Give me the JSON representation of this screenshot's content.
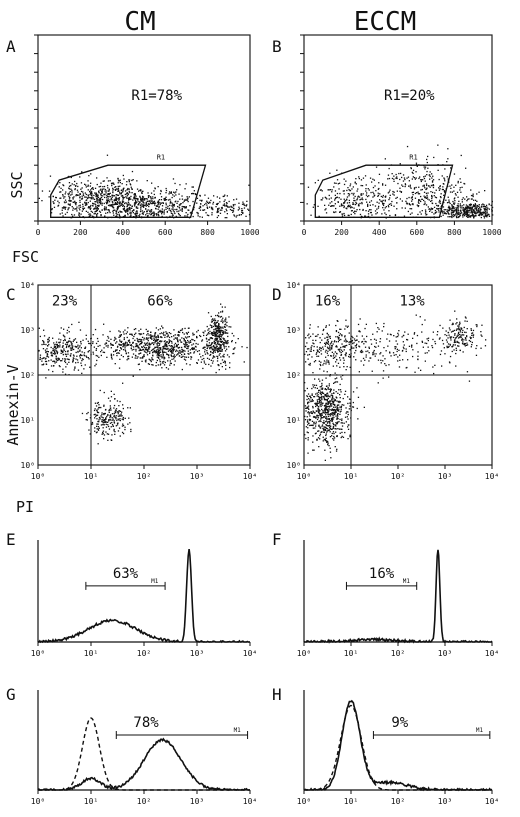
{
  "columns": [
    "CM",
    "ECCM"
  ],
  "panel_letters": [
    "A",
    "B",
    "C",
    "D",
    "E",
    "F",
    "G",
    "H"
  ],
  "axis_labels": {
    "ssc": "SSC",
    "fsc": "FSC",
    "annexin": "Annexin-V",
    "pi": "PI"
  },
  "gate_label": "R1",
  "marker_label": "M1",
  "chart_data": [
    {
      "panel": "A",
      "type": "scatter",
      "xlabel": "FSC",
      "ylabel": "SSC",
      "xlim": [
        0,
        1000
      ],
      "ylim": [
        0,
        1000
      ],
      "xticks": [
        "0",
        "200",
        "400",
        "600",
        "800",
        "1000"
      ],
      "annotation": "R1=78%",
      "gate": [
        [
          60,
          140
        ],
        [
          100,
          220
        ],
        [
          330,
          300
        ],
        [
          790,
          300
        ],
        [
          720,
          20
        ],
        [
          60,
          20
        ]
      ],
      "gate_pct": 78,
      "clusters": [
        {
          "x": 300,
          "y": 120,
          "sx": 120,
          "sy": 60,
          "n": 650
        },
        {
          "x": 560,
          "y": 90,
          "sx": 150,
          "sy": 45,
          "n": 450
        },
        {
          "x": 880,
          "y": 70,
          "sx": 70,
          "sy": 35,
          "n": 120
        }
      ]
    },
    {
      "panel": "B",
      "type": "scatter",
      "xlabel": "FSC",
      "ylabel": "SSC",
      "xlim": [
        0,
        1000
      ],
      "ylim": [
        0,
        1000
      ],
      "xticks": [
        "0",
        "200",
        "400",
        "600",
        "800",
        "1000"
      ],
      "annotation": "R1=20%",
      "gate": [
        [
          60,
          140
        ],
        [
          100,
          220
        ],
        [
          330,
          300
        ],
        [
          790,
          300
        ],
        [
          720,
          20
        ],
        [
          60,
          20
        ]
      ],
      "gate_pct": 20,
      "clusters": [
        {
          "x": 250,
          "y": 110,
          "sx": 110,
          "sy": 60,
          "n": 260
        },
        {
          "x": 640,
          "y": 170,
          "sx": 140,
          "sy": 80,
          "n": 360
        },
        {
          "x": 880,
          "y": 60,
          "sx": 90,
          "sy": 30,
          "n": 420
        }
      ]
    },
    {
      "panel": "C",
      "type": "scatter",
      "xlabel": "PI",
      "ylabel": "Annexin-V",
      "xscale": "log",
      "yscale": "log",
      "xlim": [
        1,
        10000
      ],
      "ylim": [
        1,
        10000
      ],
      "xticks": [
        "10⁰",
        "10¹",
        "10²",
        "10³",
        "10⁴"
      ],
      "yticks": [
        "10⁰",
        "10¹",
        "10²",
        "10³",
        "10⁴"
      ],
      "quadrant_x": 10,
      "quadrant_y": 100,
      "quadrant_pcts": {
        "upper_left": "23%",
        "upper_right": "66%"
      },
      "clusters": [
        {
          "lx": 1.3,
          "ly": 1.05,
          "sx": 0.2,
          "sy": 0.22,
          "n": 220
        },
        {
          "lx": 0.4,
          "ly": 2.55,
          "sx": 0.3,
          "sy": 0.22,
          "n": 300
        },
        {
          "lx": 2.3,
          "ly": 2.65,
          "sx": 0.6,
          "sy": 0.2,
          "n": 800
        },
        {
          "lx": 3.4,
          "ly": 2.85,
          "sx": 0.1,
          "sy": 0.28,
          "n": 300
        }
      ]
    },
    {
      "panel": "D",
      "type": "scatter",
      "xlabel": "PI",
      "ylabel": "Annexin-V",
      "xscale": "log",
      "yscale": "log",
      "xlim": [
        1,
        10000
      ],
      "ylim": [
        1,
        10000
      ],
      "xticks": [
        "10⁰",
        "10¹",
        "10²",
        "10³",
        "10⁴"
      ],
      "yticks": [
        "10⁰",
        "10¹",
        "10²",
        "10³",
        "10⁴"
      ],
      "quadrant_x": 10,
      "quadrant_y": 100,
      "quadrant_pcts": {
        "upper_left": "16%",
        "upper_right": "13%"
      },
      "clusters": [
        {
          "lx": 0.45,
          "ly": 1.2,
          "sx": 0.25,
          "sy": 0.35,
          "n": 650
        },
        {
          "lx": 0.6,
          "ly": 2.65,
          "sx": 0.45,
          "sy": 0.25,
          "n": 300
        },
        {
          "lx": 2.0,
          "ly": 2.65,
          "sx": 0.8,
          "sy": 0.28,
          "n": 200
        },
        {
          "lx": 3.3,
          "ly": 2.85,
          "sx": 0.2,
          "sy": 0.2,
          "n": 150
        }
      ]
    },
    {
      "panel": "E",
      "type": "line",
      "xscale": "log",
      "xlim": [
        1,
        10000
      ],
      "xticks": [
        "10⁰",
        "10¹",
        "10²",
        "10³",
        "10⁴"
      ],
      "marker_range": [
        8,
        250
      ],
      "marker_pct": "63%",
      "series": [
        {
          "style": "solid",
          "peaks": [
            {
              "lx": 1.4,
              "w": 0.45,
              "h": 0.22
            },
            {
              "lx": 2.85,
              "w": 0.045,
              "h": 0.95
            }
          ]
        }
      ]
    },
    {
      "panel": "F",
      "type": "line",
      "xscale": "log",
      "xlim": [
        1,
        10000
      ],
      "xticks": [
        "10⁰",
        "10¹",
        "10²",
        "10³",
        "10⁴"
      ],
      "marker_range": [
        8,
        250
      ],
      "marker_pct": "16%",
      "series": [
        {
          "style": "solid",
          "peaks": [
            {
              "lx": 1.5,
              "w": 0.5,
              "h": 0.025
            },
            {
              "lx": 2.85,
              "w": 0.04,
              "h": 0.95
            }
          ]
        }
      ]
    },
    {
      "panel": "G",
      "type": "line",
      "xscale": "log",
      "xlim": [
        1,
        10000
      ],
      "xticks": [
        "10⁰",
        "10¹",
        "10²",
        "10³",
        "10⁴"
      ],
      "marker_range": [
        30,
        9000
      ],
      "marker_pct": "78%",
      "series": [
        {
          "style": "dashed",
          "peaks": [
            {
              "lx": 1.0,
              "w": 0.16,
              "h": 0.75
            }
          ]
        },
        {
          "style": "solid",
          "peaks": [
            {
              "lx": 1.0,
              "w": 0.18,
              "h": 0.12
            },
            {
              "lx": 2.35,
              "w": 0.35,
              "h": 0.52
            }
          ]
        }
      ]
    },
    {
      "panel": "H",
      "type": "line",
      "xscale": "log",
      "xlim": [
        1,
        10000
      ],
      "xticks": [
        "10⁰",
        "10¹",
        "10²",
        "10³",
        "10⁴"
      ],
      "marker_range": [
        30,
        9000
      ],
      "marker_pct": "9%",
      "series": [
        {
          "style": "dashed",
          "peaks": [
            {
              "lx": 1.0,
              "w": 0.22,
              "h": 0.88
            }
          ]
        },
        {
          "style": "solid",
          "peaks": [
            {
              "lx": 1.0,
              "w": 0.19,
              "h": 0.92
            },
            {
              "lx": 1.8,
              "w": 0.4,
              "h": 0.08
            }
          ]
        }
      ]
    }
  ]
}
